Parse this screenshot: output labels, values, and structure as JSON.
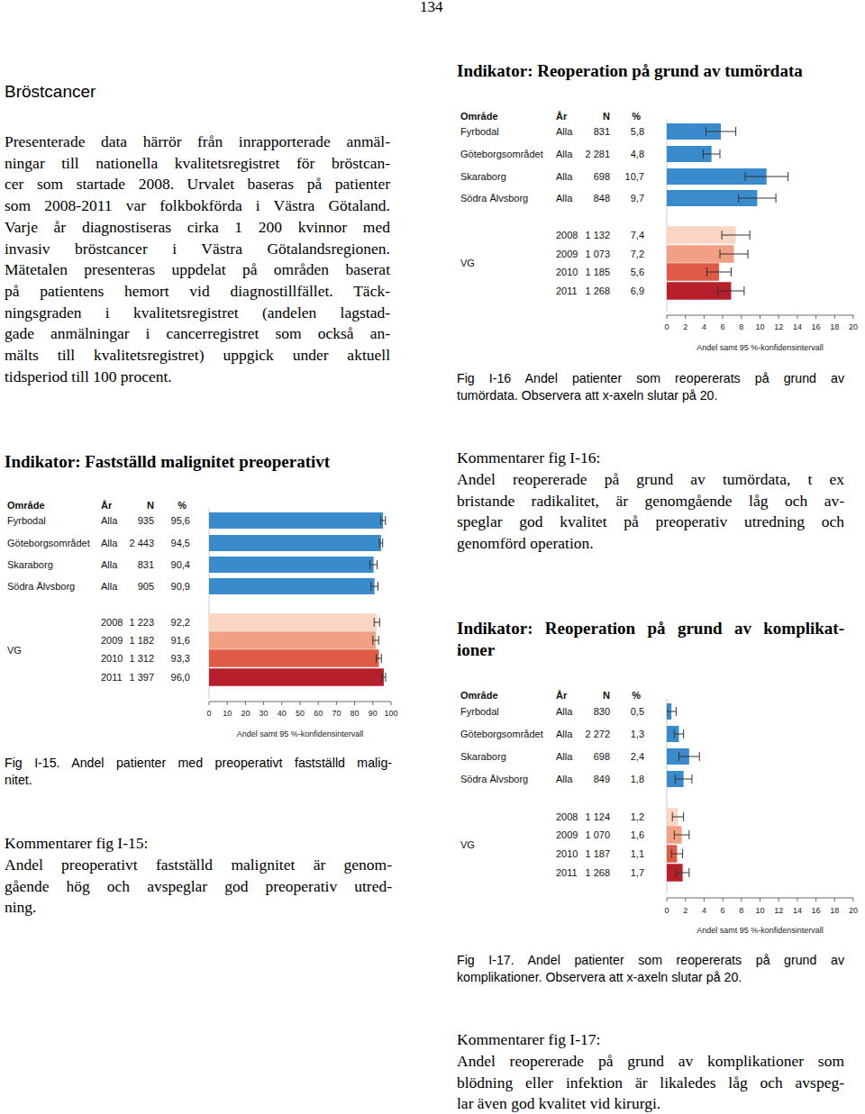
{
  "page_number": "134",
  "heading": "Bröstcancer",
  "intro": [
    "Presenterade data härrör från inrapporterade anmäl-",
    "ningar till nationella kvalitetsregistret för bröstcan-",
    "cer som startade 2008. Urvalet baseras på patienter",
    "som 2008-2011 var folkbokförda i Västra Götaland.",
    "Varje år diagnostiseras cirka 1 200 kvinnor med",
    "invasiv bröstcancer i Västra Götalandsregionen.",
    "Mätetalen presenteras uppdelat på områden baserat",
    "på patientens hemort vid diagnostillfället. Täck-",
    "ningsgraden i kvalitetsregistret (andelen lagstad-",
    "gade anmälningar i cancerregistret som också an-",
    "mälts till kvalitetsregistret) uppgick under aktuell",
    "tidsperiod till 100 procent."
  ],
  "chart_data": [
    {
      "type": "bar",
      "orientation": "horizontal",
      "title": [
        "Indikator: Reoperation på grund av tumördata"
      ],
      "columns": [
        "Område",
        "År",
        "N",
        "%"
      ],
      "categories": [
        "Fyrbodal",
        "Göteborgsområdet",
        "Skaraborg",
        "Södra Älvsborg",
        "VG",
        null,
        null,
        null
      ],
      "years": [
        "Alla",
        "Alla",
        "Alla",
        "Alla",
        "2008",
        "2009",
        "2010",
        "2011"
      ],
      "n": [
        "831",
        "2 281",
        "698",
        "848",
        "1 132",
        "1 073",
        "1 185",
        "1 268"
      ],
      "values": [
        5.8,
        4.8,
        10.7,
        9.7,
        7.4,
        7.2,
        5.6,
        6.9
      ],
      "value_labels": [
        "5,8",
        "4,8",
        "10,7",
        "9,7",
        "7,4",
        "7,2",
        "5,6",
        "6,9"
      ],
      "errors": [
        1.6,
        0.9,
        2.3,
        2.0,
        1.5,
        1.5,
        1.3,
        1.4
      ],
      "colors": [
        "#3a8bcb",
        "#3a8bcb",
        "#3a8bcb",
        "#3a8bcb",
        "#fbd5c3",
        "#f2a083",
        "#df5a44",
        "#b71f2a"
      ],
      "xlim": [
        0,
        20
      ],
      "xticks": [
        0,
        2,
        4,
        6,
        8,
        10,
        12,
        14,
        16,
        18,
        20
      ],
      "xlabel": "Andel samt 95 %-konfidensintervall",
      "caption": [
        "Fig I-16 Andel patienter som reopererats på grund av",
        "tumördata. Observera att x-axeln slutar på 20."
      ],
      "comment": [
        "Kommentarer fig I-16:",
        "Andel reopererade på grund av tumördata, t ex",
        "bristande radikalitet, är genomgående låg och av-",
        "speglar god kvalitet på preoperativ utredning och",
        "genomförd operation."
      ]
    },
    {
      "type": "bar",
      "orientation": "horizontal",
      "title": [
        "Indikator: Fastställd malignitet preoperativt"
      ],
      "columns": [
        "Område",
        "År",
        "N",
        "%"
      ],
      "categories": [
        "Fyrbodal",
        "Göteborgsområdet",
        "Skaraborg",
        "Södra Älvsborg",
        "VG",
        null,
        null,
        null
      ],
      "years": [
        "Alla",
        "Alla",
        "Alla",
        "Alla",
        "2008",
        "2009",
        "2010",
        "2011"
      ],
      "n": [
        "935",
        "2 443",
        "831",
        "905",
        "1 223",
        "1 182",
        "1 312",
        "1 397"
      ],
      "values": [
        95.6,
        94.5,
        90.4,
        90.9,
        92.2,
        91.6,
        93.3,
        96.0
      ],
      "value_labels": [
        "95,6",
        "94,5",
        "90,4",
        "90,9",
        "92,2",
        "91,6",
        "93,3",
        "96,0"
      ],
      "errors": [
        1.3,
        0.9,
        2.0,
        1.9,
        1.5,
        1.6,
        1.4,
        1.0
      ],
      "colors": [
        "#3a8bcb",
        "#3a8bcb",
        "#3a8bcb",
        "#3a8bcb",
        "#fbd5c3",
        "#f2a083",
        "#df5a44",
        "#b71f2a"
      ],
      "xlim": [
        0,
        100
      ],
      "xticks": [
        0,
        10,
        20,
        30,
        40,
        50,
        60,
        70,
        80,
        90,
        100
      ],
      "xlabel": "Andel samt 95 %-konfidensintervall",
      "caption": [
        "Fig I-15. Andel patienter med preoperativt fastställd malig-",
        "nitet."
      ],
      "comment": [
        "Kommentarer fig I-15:",
        "Andel preoperativt fastställd malignitet är genom-",
        "gående hög och avspeglar god preoperativ utred-",
        "ning."
      ]
    },
    {
      "type": "bar",
      "orientation": "horizontal",
      "title": [
        "Indikator: Reoperation på grund av komplikat-",
        "ioner"
      ],
      "columns": [
        "Område",
        "År",
        "N",
        "%"
      ],
      "categories": [
        "Fyrbodal",
        "Göteborgsområdet",
        "Skaraborg",
        "Södra Älvsborg",
        "VG",
        null,
        null,
        null
      ],
      "years": [
        "Alla",
        "Alla",
        "Alla",
        "Alla",
        "2008",
        "2009",
        "2010",
        "2011"
      ],
      "n": [
        "830",
        "2 272",
        "698",
        "849",
        "1 124",
        "1 070",
        "1 187",
        "1 268"
      ],
      "values": [
        0.5,
        1.3,
        2.4,
        1.8,
        1.2,
        1.6,
        1.1,
        1.7
      ],
      "value_labels": [
        "0,5",
        "1,3",
        "2,4",
        "1,8",
        "1,2",
        "1,6",
        "1,1",
        "1,7"
      ],
      "errors": [
        0.5,
        0.5,
        1.1,
        0.9,
        0.6,
        0.8,
        0.6,
        0.7
      ],
      "colors": [
        "#3a8bcb",
        "#3a8bcb",
        "#3a8bcb",
        "#3a8bcb",
        "#fbd5c3",
        "#f2a083",
        "#df5a44",
        "#b71f2a"
      ],
      "xlim": [
        0,
        20
      ],
      "xticks": [
        0,
        2,
        4,
        6,
        8,
        10,
        12,
        14,
        16,
        18,
        20
      ],
      "xlabel": "Andel samt 95 %-konfidensintervall",
      "caption": [
        "Fig I-17. Andel patienter som reopererats på grund av",
        "komplikationer. Observera att x-axeln slutar på 20."
      ],
      "comment": [
        "Kommentarer fig I-17:",
        "Andel reopererade på grund av komplikationer som",
        "blödning eller infektion är likaledes låg och avspeg-",
        "lar även god kvalitet vid kirurgi."
      ]
    }
  ]
}
